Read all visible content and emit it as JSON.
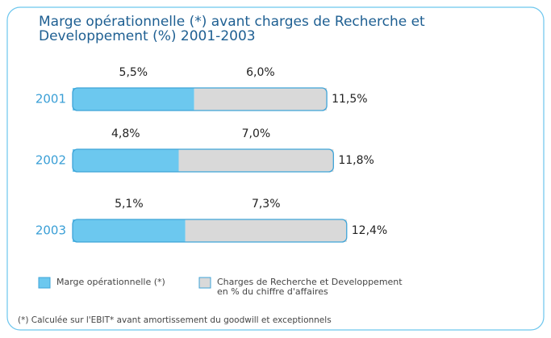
{
  "chart_data": {
    "type": "stacked-barh",
    "title": "Marge opérationnelle (*) avant charges de Recherche et\nDeveloppement (%) 2001-2003",
    "categories": [
      "2001",
      "2002",
      "2003"
    ],
    "series": [
      {
        "name": "Marge opérationnelle (*)",
        "color": "#6cc8ef",
        "values": [
          5.5,
          4.8,
          5.1
        ],
        "value_labels": [
          "5,5%",
          "4,8%",
          "5,1%"
        ]
      },
      {
        "name": "Charges de Recherche et Developpement\nen % du chiffre d'affaires",
        "color": "#d9d9d9",
        "values": [
          6.0,
          7.0,
          7.3
        ],
        "value_labels": [
          "6,0%",
          "7,0%",
          "7,3%"
        ]
      }
    ],
    "totals": [
      11.5,
      11.8,
      12.4
    ],
    "total_labels": [
      "11,5%",
      "11,8%",
      "12,4%"
    ],
    "footnote": "(*)   Calculée sur l'EBIT* avant amortissement du goodwill et exceptionnels"
  }
}
